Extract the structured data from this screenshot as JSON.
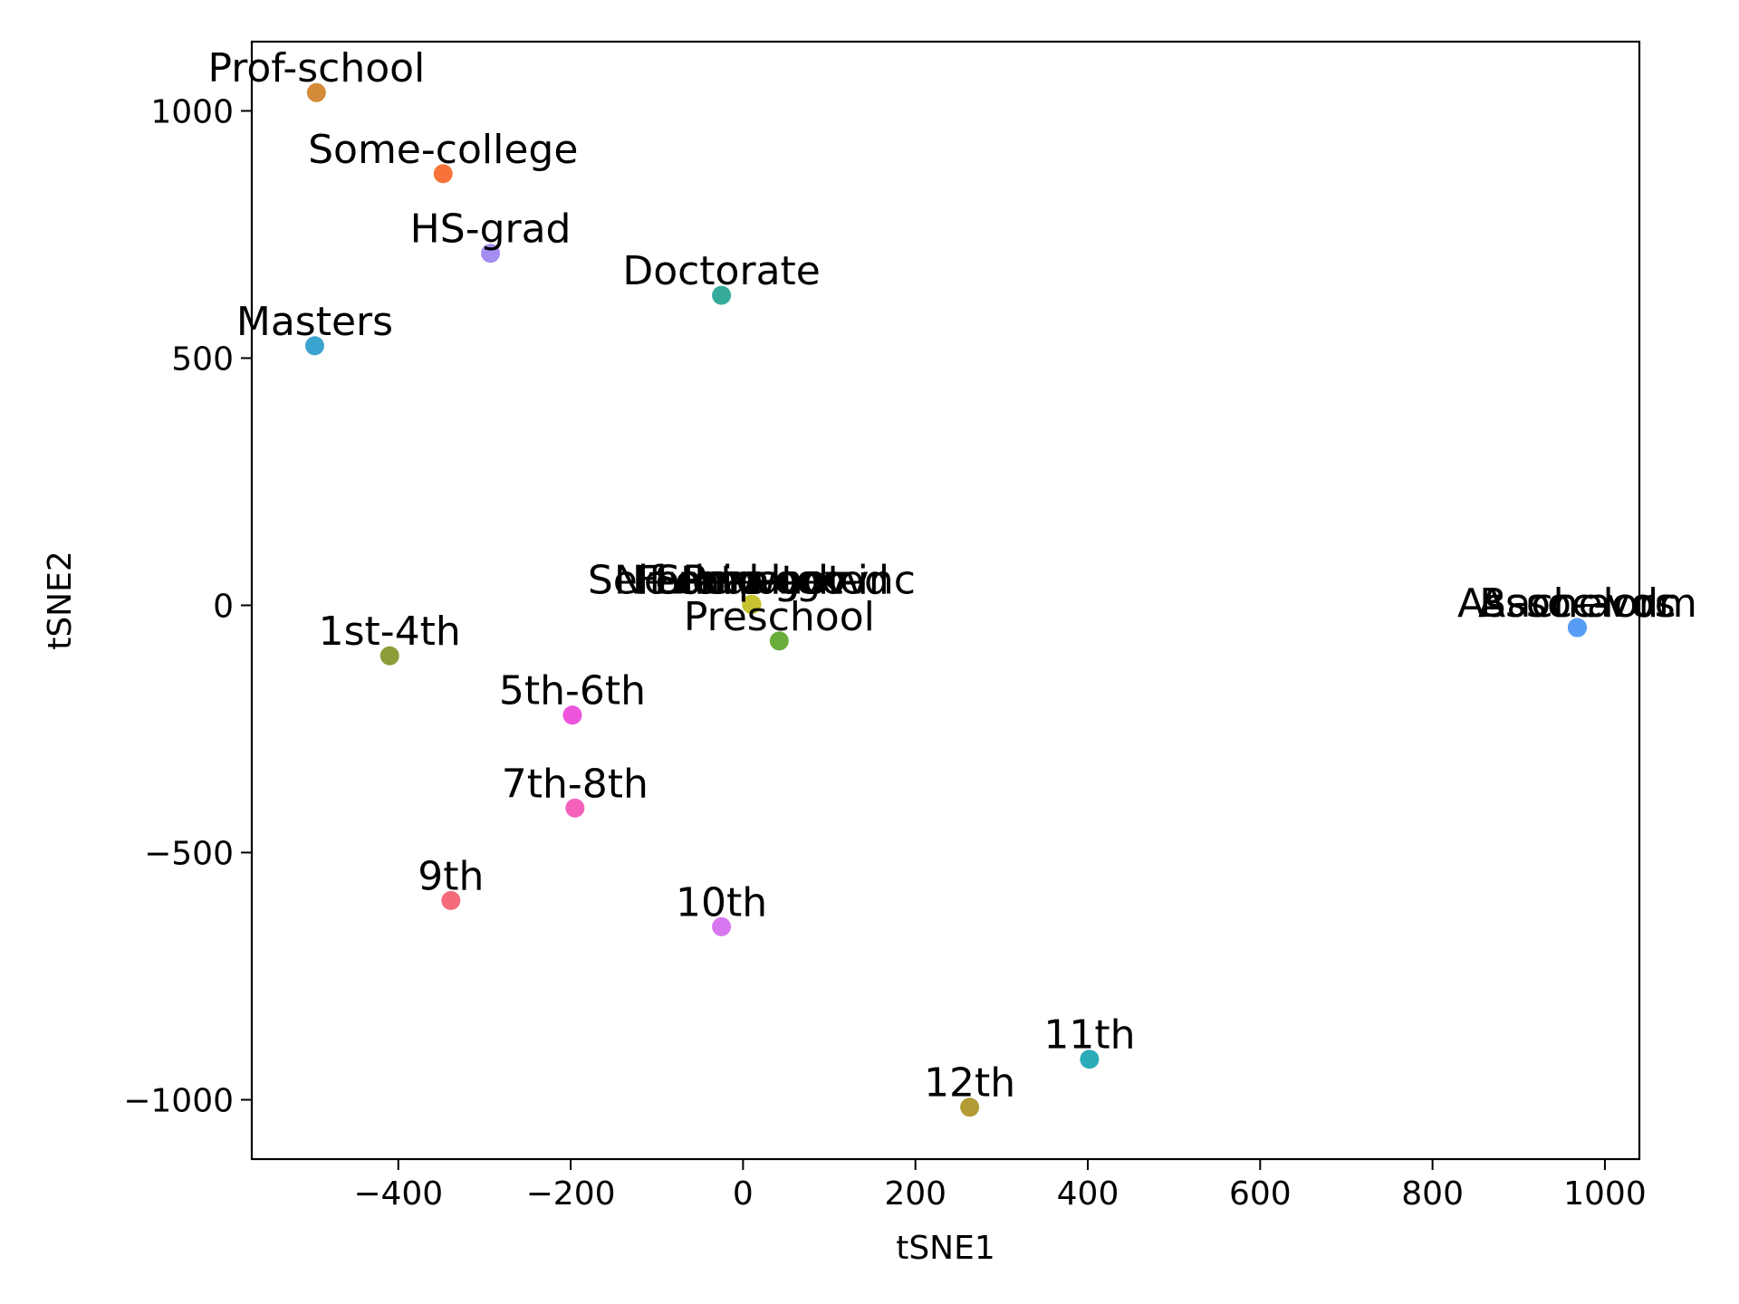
{
  "chart_data": {
    "type": "scatter",
    "title": "",
    "xlabel": "tSNE1",
    "ylabel": "tSNE2",
    "xlim": [
      -570,
      1040
    ],
    "ylim": [
      -1120,
      1140
    ],
    "xticks": [
      -400,
      -200,
      0,
      200,
      400,
      600,
      800,
      1000
    ],
    "yticks": [
      -1000,
      -500,
      0,
      500,
      1000
    ],
    "xtick_labels": [
      "−400",
      "−200",
      "0",
      "200",
      "400",
      "600",
      "800",
      "1000"
    ],
    "ytick_labels": [
      "−1000",
      "−500",
      "0",
      "500",
      "1000"
    ],
    "grid": false,
    "legend": "none",
    "points": [
      {
        "label": "Prof-school",
        "x": -495,
        "y": 1037,
        "color": "#d48c3a"
      },
      {
        "label": "Some-college",
        "x": -348,
        "y": 873,
        "color": "#f7733a"
      },
      {
        "label": "HS-grad",
        "x": -293,
        "y": 712,
        "color": "#a48cf0"
      },
      {
        "label": "Doctorate",
        "x": -25,
        "y": 627,
        "color": "#36ab9b"
      },
      {
        "label": "Masters",
        "x": -497,
        "y": 525,
        "color": "#3ba3cf"
      },
      {
        "label": "Self-emp-not-inc",
        "x": 10,
        "y": 2,
        "color": "#c8c22e"
      },
      {
        "label": "Never-worked",
        "x": 10,
        "y": 2,
        "color": "#c8c22e"
      },
      {
        "label": "State-gov",
        "x": 10,
        "y": 2,
        "color": "#c8c22e"
      },
      {
        "label": "Federal-gov",
        "x": 10,
        "y": 2,
        "color": "#c8c22e"
      },
      {
        "label": "Local-gov",
        "x": 10,
        "y": 2,
        "color": "#c8c22e"
      },
      {
        "label": "Private",
        "x": 10,
        "y": 2,
        "color": "#c8c22e"
      },
      {
        "label": "Preschool",
        "x": 42,
        "y": -72,
        "color": "#6aad3a"
      },
      {
        "label": "Assoc-acdm",
        "x": 968,
        "y": -45,
        "color": "#579df5"
      },
      {
        "label": "Assoc-voc",
        "x": 968,
        "y": -45,
        "color": "#579df5"
      },
      {
        "label": "Bachelors",
        "x": 968,
        "y": -45,
        "color": "#579df5"
      },
      {
        "label": "1st-4th",
        "x": -410,
        "y": -102,
        "color": "#8c9e3a"
      },
      {
        "label": "5th-6th",
        "x": -198,
        "y": -222,
        "color": "#ee55dc"
      },
      {
        "label": "7th-8th",
        "x": -195,
        "y": -410,
        "color": "#f461bd"
      },
      {
        "label": "9th",
        "x": -339,
        "y": -597,
        "color": "#f56b7b"
      },
      {
        "label": "10th",
        "x": -25,
        "y": -650,
        "color": "#d877ef"
      },
      {
        "label": "11th",
        "x": 402,
        "y": -918,
        "color": "#2aabb8"
      },
      {
        "label": "12th",
        "x": 263,
        "y": -1015,
        "color": "#b39b35"
      }
    ]
  }
}
